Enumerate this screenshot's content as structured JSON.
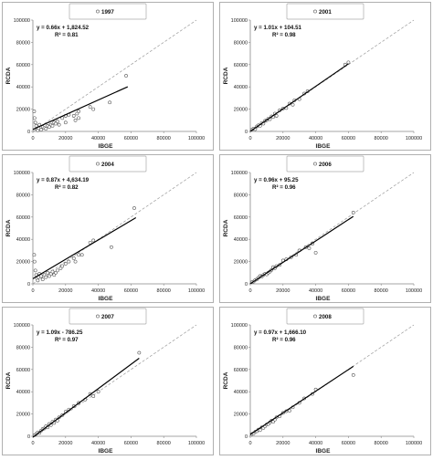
{
  "chart_data": [
    {
      "type": "scatter",
      "legend": "1997",
      "legend_position": "top-center",
      "equation": "y = 0.66x + 1,824.52",
      "r2": "R² = 0.81",
      "xlabel": "IBGE",
      "ylabel": "RCDA",
      "xlim": [
        0,
        100000
      ],
      "ylim": [
        0,
        100000
      ],
      "xticks": [
        "0",
        "20000",
        "40000",
        "60000",
        "80000",
        "100000"
      ],
      "yticks": [
        "0",
        "20000",
        "40000",
        "60000",
        "80000",
        "100000"
      ],
      "fit": {
        "slope": 0.66,
        "intercept": 1824.52,
        "x_range": [
          0,
          58000
        ]
      },
      "identity_line": true,
      "points": [
        [
          800,
          18000
        ],
        [
          1000,
          12000
        ],
        [
          1500,
          8000
        ],
        [
          2000,
          5000
        ],
        [
          2500,
          2000
        ],
        [
          3000,
          1000
        ],
        [
          3500,
          3000
        ],
        [
          4000,
          6000
        ],
        [
          5000,
          1500
        ],
        [
          6000,
          4000
        ],
        [
          7000,
          3000
        ],
        [
          8000,
          2500
        ],
        [
          9000,
          5000
        ],
        [
          10000,
          4000
        ],
        [
          11000,
          6000
        ],
        [
          12000,
          5000
        ],
        [
          13000,
          8000
        ],
        [
          14000,
          7000
        ],
        [
          15000,
          9000
        ],
        [
          16000,
          6000
        ],
        [
          18000,
          12000
        ],
        [
          20000,
          14000
        ],
        [
          20000,
          8000
        ],
        [
          22000,
          15000
        ],
        [
          25000,
          14000
        ],
        [
          26000,
          10000
        ],
        [
          27000,
          16000
        ],
        [
          28000,
          12000
        ],
        [
          28000,
          18000
        ],
        [
          35000,
          22000
        ],
        [
          37000,
          20000
        ],
        [
          47000,
          26000
        ],
        [
          57000,
          50000
        ]
      ]
    },
    {
      "type": "scatter",
      "legend": "2001",
      "legend_position": "top-center",
      "equation": "y = 1.01x + 104.51",
      "r2": "R² = 0.98",
      "xlabel": "IBGE",
      "ylabel": "RCDA",
      "xlim": [
        0,
        100000
      ],
      "ylim": [
        0,
        100000
      ],
      "xticks": [
        "0",
        "20000",
        "40000",
        "60000",
        "80000",
        "100000"
      ],
      "yticks": [
        "0",
        "20000",
        "40000",
        "60000",
        "80000",
        "100000"
      ],
      "fit": {
        "slope": 1.01,
        "intercept": 104.51,
        "x_range": [
          0,
          60000
        ]
      },
      "identity_line": true,
      "points": [
        [
          1000,
          1500
        ],
        [
          2000,
          2500
        ],
        [
          3000,
          2000
        ],
        [
          4000,
          4500
        ],
        [
          5000,
          5500
        ],
        [
          6000,
          5000
        ],
        [
          7000,
          7500
        ],
        [
          8000,
          7000
        ],
        [
          9000,
          9500
        ],
        [
          10000,
          10000
        ],
        [
          11000,
          11500
        ],
        [
          12000,
          11000
        ],
        [
          13000,
          13500
        ],
        [
          14000,
          13000
        ],
        [
          15000,
          16000
        ],
        [
          16000,
          14000
        ],
        [
          18000,
          19000
        ],
        [
          20000,
          20500
        ],
        [
          22000,
          21000
        ],
        [
          24000,
          25000
        ],
        [
          26000,
          24000
        ],
        [
          27000,
          28000
        ],
        [
          30000,
          29000
        ],
        [
          33000,
          34000
        ],
        [
          35000,
          36000
        ],
        [
          58000,
          60000
        ],
        [
          60000,
          62000
        ]
      ]
    },
    {
      "type": "scatter",
      "legend": "2004",
      "legend_position": "top-center",
      "equation": "y = 0.87x + 4,634.19",
      "r2": "R² = 0.82",
      "xlabel": "IBGE",
      "ylabel": "RCDA",
      "xlim": [
        0,
        100000
      ],
      "ylim": [
        0,
        100000
      ],
      "xticks": [
        "0",
        "20000",
        "40000",
        "60000",
        "80000",
        "100000"
      ],
      "yticks": [
        "0",
        "20000",
        "40000",
        "60000",
        "80000",
        "100000"
      ],
      "fit": {
        "slope": 0.87,
        "intercept": 4634.19,
        "x_range": [
          0,
          63000
        ]
      },
      "identity_line": true,
      "points": [
        [
          800,
          26000
        ],
        [
          1000,
          20000
        ],
        [
          1500,
          12000
        ],
        [
          2000,
          8000
        ],
        [
          2500,
          5000
        ],
        [
          3000,
          3000
        ],
        [
          3500,
          6000
        ],
        [
          4000,
          9000
        ],
        [
          5000,
          7000
        ],
        [
          6000,
          4000
        ],
        [
          7000,
          8000
        ],
        [
          8000,
          6000
        ],
        [
          9000,
          10000
        ],
        [
          10000,
          7000
        ],
        [
          11000,
          9000
        ],
        [
          12000,
          11000
        ],
        [
          13000,
          8000
        ],
        [
          14000,
          10000
        ],
        [
          15000,
          12000
        ],
        [
          17000,
          14000
        ],
        [
          18000,
          16000
        ],
        [
          20000,
          18000
        ],
        [
          22000,
          20000
        ],
        [
          25000,
          23000
        ],
        [
          26000,
          20000
        ],
        [
          28000,
          26000
        ],
        [
          30000,
          26000
        ],
        [
          35000,
          37000
        ],
        [
          37000,
          39000
        ],
        [
          48000,
          33000
        ],
        [
          62000,
          68000
        ]
      ]
    },
    {
      "type": "scatter",
      "legend": "2006",
      "legend_position": "top-center",
      "equation": "y = 0.96x + 95.25",
      "r2": "R² = 0.96",
      "xlabel": "IBGE",
      "ylabel": "RCDA",
      "xlim": [
        0,
        100000
      ],
      "ylim": [
        0,
        100000
      ],
      "xticks": [
        "0",
        "20000",
        "40000",
        "60000",
        "80000",
        "100000"
      ],
      "yticks": [
        "0",
        "20000",
        "40000",
        "60000",
        "80000",
        "100000"
      ],
      "fit": {
        "slope": 0.96,
        "intercept": 95.25,
        "x_range": [
          0,
          63000
        ]
      },
      "identity_line": true,
      "points": [
        [
          1000,
          1500
        ],
        [
          2000,
          2000
        ],
        [
          3000,
          3500
        ],
        [
          4000,
          4000
        ],
        [
          5000,
          5500
        ],
        [
          6000,
          7000
        ],
        [
          7000,
          6500
        ],
        [
          8000,
          8000
        ],
        [
          9000,
          9000
        ],
        [
          10000,
          8500
        ],
        [
          11000,
          10000
        ],
        [
          12000,
          11000
        ],
        [
          13000,
          12500
        ],
        [
          14000,
          15000
        ],
        [
          15000,
          14000
        ],
        [
          16000,
          16000
        ],
        [
          18000,
          17000
        ],
        [
          20000,
          21000
        ],
        [
          22000,
          22000
        ],
        [
          25000,
          24000
        ],
        [
          28000,
          26000
        ],
        [
          30000,
          30000
        ],
        [
          34000,
          33000
        ],
        [
          36000,
          32000
        ],
        [
          38000,
          36000
        ],
        [
          40000,
          28000
        ],
        [
          63000,
          64000
        ]
      ]
    },
    {
      "type": "scatter",
      "legend": "2007",
      "legend_position": "top-center",
      "equation": "y = 1.09x - 786.25",
      "r2": "R² = 0.97",
      "xlabel": "IBGE",
      "ylabel": "RCDA",
      "xlim": [
        0,
        100000
      ],
      "ylim": [
        0,
        100000
      ],
      "xticks": [
        "0",
        "20000",
        "40000",
        "60000",
        "80000",
        "100000"
      ],
      "yticks": [
        "0",
        "20000",
        "40000",
        "60000",
        "80000",
        "100000"
      ],
      "fit": {
        "slope": 1.09,
        "intercept": -786.25,
        "x_range": [
          0,
          65000
        ]
      },
      "identity_line": true,
      "points": [
        [
          1000,
          1000
        ],
        [
          2000,
          2000
        ],
        [
          3000,
          3500
        ],
        [
          4000,
          3000
        ],
        [
          5000,
          5000
        ],
        [
          6000,
          6500
        ],
        [
          7000,
          7000
        ],
        [
          8000,
          9000
        ],
        [
          9000,
          8000
        ],
        [
          10000,
          11000
        ],
        [
          11000,
          10000
        ],
        [
          12000,
          13000
        ],
        [
          13000,
          12000
        ],
        [
          14000,
          15000
        ],
        [
          15000,
          14000
        ],
        [
          16000,
          17000
        ],
        [
          18000,
          19000
        ],
        [
          20000,
          22000
        ],
        [
          22000,
          24000
        ],
        [
          25000,
          27000
        ],
        [
          28000,
          30000
        ],
        [
          32000,
          33000
        ],
        [
          35000,
          38000
        ],
        [
          37000,
          36000
        ],
        [
          40000,
          40000
        ],
        [
          65000,
          75000
        ]
      ]
    },
    {
      "type": "scatter",
      "legend": "2008",
      "legend_position": "top-center",
      "equation": "y = 0.97x + 1,666.10",
      "r2": "R² = 0.96",
      "xlabel": "IBGE",
      "ylabel": "RCDA",
      "xlim": [
        0,
        100000
      ],
      "ylim": [
        0,
        100000
      ],
      "xticks": [
        "0",
        "20000",
        "40000",
        "60000",
        "80000",
        "100000"
      ],
      "yticks": [
        "0",
        "20000",
        "40000",
        "60000",
        "80000",
        "100000"
      ],
      "fit": {
        "slope": 0.97,
        "intercept": 1666.1,
        "x_range": [
          0,
          63000
        ]
      },
      "identity_line": true,
      "points": [
        [
          1000,
          2000
        ],
        [
          2000,
          2500
        ],
        [
          3000,
          4000
        ],
        [
          4000,
          4500
        ],
        [
          5000,
          6000
        ],
        [
          6000,
          5500
        ],
        [
          7000,
          8000
        ],
        [
          8000,
          7500
        ],
        [
          9000,
          9000
        ],
        [
          10000,
          10500
        ],
        [
          11000,
          11000
        ],
        [
          12000,
          12500
        ],
        [
          13000,
          14000
        ],
        [
          14000,
          13000
        ],
        [
          15000,
          15000
        ],
        [
          16000,
          17000
        ],
        [
          18000,
          18000
        ],
        [
          20000,
          21000
        ],
        [
          22000,
          22500
        ],
        [
          24000,
          23000
        ],
        [
          26000,
          26000
        ],
        [
          30000,
          30000
        ],
        [
          33000,
          34000
        ],
        [
          38000,
          38000
        ],
        [
          40000,
          42000
        ],
        [
          63000,
          55000
        ]
      ]
    }
  ]
}
